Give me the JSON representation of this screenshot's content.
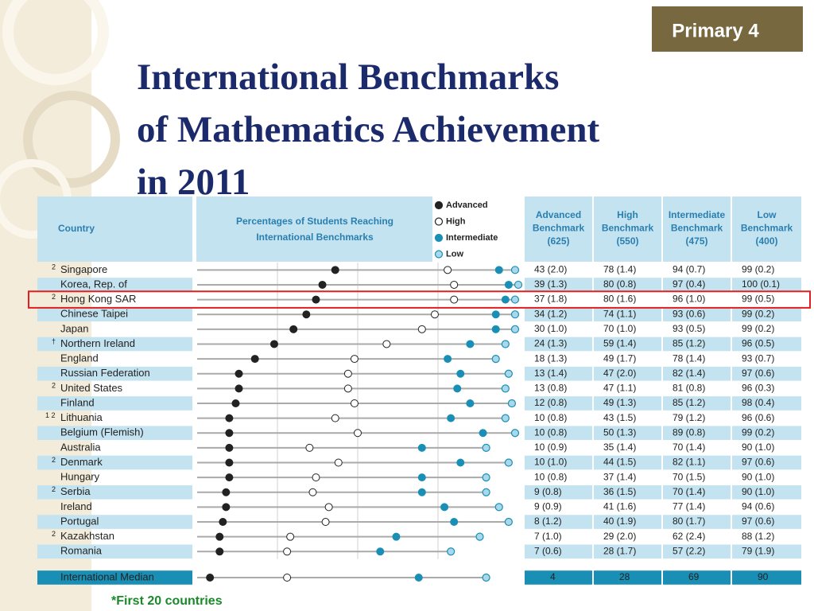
{
  "badge": "Primary 4",
  "title": [
    "International Benchmarks",
    "of Mathematics Achievement",
    "in 2011"
  ],
  "table": {
    "country_header": "Country",
    "dot_header": [
      "Percentages of Students Reaching",
      "International Benchmarks"
    ],
    "legend": [
      "Advanced",
      "High",
      "Intermediate",
      "Low"
    ],
    "colors": [
      "#222222",
      "#ffffff",
      "#1a8fb5",
      "#a8d8ea"
    ],
    "xlim": [
      0,
      100
    ],
    "grid_ticks": [
      25,
      50,
      75
    ],
    "columns": [
      [
        "Advanced",
        "Benchmark",
        "(625)"
      ],
      [
        "High",
        "Benchmark",
        "(550)"
      ],
      [
        "Intermediate",
        "Benchmark",
        "(475)"
      ],
      [
        "Low",
        "Benchmark",
        "(400)"
      ]
    ],
    "rows": [
      {
        "note": "2",
        "country": "Singapore",
        "values": [
          43,
          78,
          94,
          99
        ],
        "value_labels": [
          "43 (2.0)",
          "78 (1.4)",
          "94 (0.7)",
          "99 (0.2)"
        ]
      },
      {
        "country": "Korea, Rep. of",
        "values": [
          39,
          80,
          97,
          100
        ],
        "value_labels": [
          "39 (1.3)",
          "80 (0.8)",
          "97 (0.4)",
          "100 (0.1)"
        ]
      },
      {
        "note": "2",
        "country": "Hong Kong SAR",
        "values": [
          37,
          80,
          96,
          99
        ],
        "value_labels": [
          "37 (1.8)",
          "80 (1.6)",
          "96 (1.0)",
          "99 (0.5)"
        ]
      },
      {
        "country": "Chinese Taipei",
        "values": [
          34,
          74,
          93,
          99
        ],
        "value_labels": [
          "34 (1.2)",
          "74 (1.1)",
          "93 (0.6)",
          "99 (0.2)"
        ]
      },
      {
        "country": "Japan",
        "values": [
          30,
          70,
          93,
          99
        ],
        "value_labels": [
          "30 (1.0)",
          "70 (1.0)",
          "93 (0.5)",
          "99 (0.2)"
        ]
      },
      {
        "note": "†",
        "country": "Northern Ireland",
        "values": [
          24,
          59,
          85,
          96
        ],
        "value_labels": [
          "24 (1.3)",
          "59 (1.4)",
          "85 (1.2)",
          "96 (0.5)"
        ]
      },
      {
        "country": "England",
        "values": [
          18,
          49,
          78,
          93
        ],
        "value_labels": [
          "18 (1.3)",
          "49 (1.7)",
          "78 (1.4)",
          "93 (0.7)"
        ]
      },
      {
        "country": "Russian Federation",
        "values": [
          13,
          47,
          82,
          97
        ],
        "value_labels": [
          "13 (1.4)",
          "47 (2.0)",
          "82 (1.4)",
          "97 (0.6)"
        ]
      },
      {
        "note": "2",
        "country": "United States",
        "values": [
          13,
          47,
          81,
          96
        ],
        "value_labels": [
          "13 (0.8)",
          "47 (1.1)",
          "81 (0.8)",
          "96 (0.3)"
        ]
      },
      {
        "country": "Finland",
        "values": [
          12,
          49,
          85,
          98
        ],
        "value_labels": [
          "12 (0.8)",
          "49 (1.3)",
          "85 (1.2)",
          "98 (0.4)"
        ]
      },
      {
        "note": "1 2",
        "country": "Lithuania",
        "values": [
          10,
          43,
          79,
          96
        ],
        "value_labels": [
          "10 (0.8)",
          "43 (1.5)",
          "79 (1.2)",
          "96 (0.6)"
        ]
      },
      {
        "country": "Belgium (Flemish)",
        "values": [
          10,
          50,
          89,
          99
        ],
        "value_labels": [
          "10 (0.8)",
          "50 (1.3)",
          "89 (0.8)",
          "99 (0.2)"
        ]
      },
      {
        "country": "Australia",
        "values": [
          10,
          35,
          70,
          90
        ],
        "value_labels": [
          "10 (0.9)",
          "35 (1.4)",
          "70 (1.4)",
          "90 (1.0)"
        ]
      },
      {
        "note": "2",
        "country": "Denmark",
        "values": [
          10,
          44,
          82,
          97
        ],
        "value_labels": [
          "10 (1.0)",
          "44 (1.5)",
          "82 (1.1)",
          "97 (0.6)"
        ]
      },
      {
        "country": "Hungary",
        "values": [
          10,
          37,
          70,
          90
        ],
        "value_labels": [
          "10 (0.8)",
          "37 (1.4)",
          "70 (1.5)",
          "90 (1.0)"
        ]
      },
      {
        "note": "2",
        "country": "Serbia",
        "values": [
          9,
          36,
          70,
          90
        ],
        "value_labels": [
          "9 (0.8)",
          "36 (1.5)",
          "70 (1.4)",
          "90 (1.0)"
        ]
      },
      {
        "country": "Ireland",
        "values": [
          9,
          41,
          77,
          94
        ],
        "value_labels": [
          "9 (0.9)",
          "41 (1.6)",
          "77 (1.4)",
          "94 (0.6)"
        ]
      },
      {
        "country": "Portugal",
        "values": [
          8,
          40,
          80,
          97
        ],
        "value_labels": [
          "8 (1.2)",
          "40 (1.9)",
          "80 (1.7)",
          "97 (0.6)"
        ]
      },
      {
        "note": "2",
        "country": "Kazakhstan",
        "values": [
          7,
          29,
          62,
          88
        ],
        "value_labels": [
          "7 (1.0)",
          "29 (2.0)",
          "62 (2.4)",
          "88 (1.2)"
        ]
      },
      {
        "country": "Romania",
        "values": [
          7,
          28,
          57,
          79
        ],
        "value_labels": [
          "7 (0.6)",
          "28 (1.7)",
          "57 (2.2)",
          "79 (1.9)"
        ]
      }
    ],
    "median": {
      "country": "International Median",
      "values": [
        4,
        28,
        69,
        90
      ]
    },
    "highlight_row": 2
  },
  "footnote": "*First 20 countries"
}
